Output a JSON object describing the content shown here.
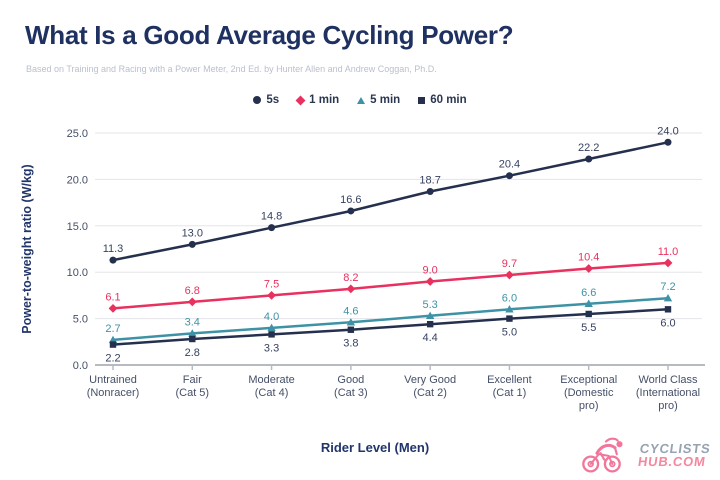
{
  "header": {
    "title": "What Is a Good Average Cycling Power?",
    "subtitle": "Based on Training and Racing with a Power Meter, 2nd Ed. by Hunter Allen and Andrew Coggan, Ph.D."
  },
  "chart_data": {
    "type": "line",
    "title": "What Is a Good Average Cycling Power?",
    "xlabel": "Rider Level (Men)",
    "ylabel": "Power-to-weight ratio (W/kg)",
    "ylim": [
      0,
      25
    ],
    "yticks": [
      0,
      5,
      10,
      15,
      20,
      25
    ],
    "grid": true,
    "legend_position": "top-center",
    "categories": [
      "Untrained\n(Nonracer)",
      "Fair\n(Cat 5)",
      "Moderate\n(Cat 4)",
      "Good\n(Cat 3)",
      "Very Good\n(Cat 2)",
      "Excellent\n(Cat 1)",
      "Exceptional\n(Domestic\npro)",
      "World Class\n(International\npro)"
    ],
    "series": [
      {
        "name": "5s",
        "marker": "circle",
        "color": "#25304e",
        "label_position": "above",
        "values": [
          11.3,
          13.0,
          14.8,
          16.6,
          18.7,
          20.4,
          22.2,
          24.0
        ]
      },
      {
        "name": "1 min",
        "marker": "diamond",
        "color": "#e8315f",
        "label_position": "above",
        "values": [
          6.1,
          6.8,
          7.5,
          8.2,
          9.0,
          9.7,
          10.4,
          11.0
        ]
      },
      {
        "name": "5 min",
        "marker": "triangle",
        "color": "#3d93a5",
        "label_position": "above",
        "values": [
          2.7,
          3.4,
          4.0,
          4.6,
          5.3,
          6.0,
          6.6,
          7.2
        ]
      },
      {
        "name": "60 min",
        "marker": "square",
        "color": "#25304e",
        "label_position": "below",
        "values": [
          2.2,
          2.8,
          3.3,
          3.8,
          4.4,
          5.0,
          5.5,
          6.0
        ]
      }
    ],
    "colors": {
      "title": "#1e3160",
      "axis_label": "#22356b",
      "tick_label": "#454f68",
      "gridline": "#e4e5e9",
      "axis_line": "#b7bac1",
      "subtitle": "#b9c0cc"
    }
  },
  "footer": {
    "logo_top": "CYCLISTS",
    "logo_bottom": "HUB.COM"
  }
}
